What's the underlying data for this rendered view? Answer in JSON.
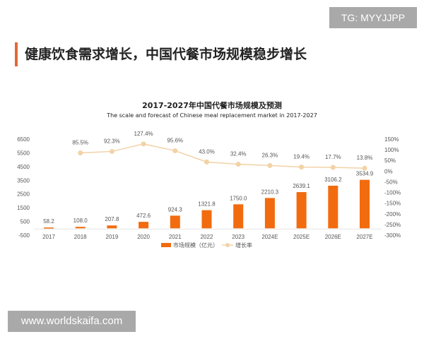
{
  "header": {
    "title": "健康饮食需求增长，中国代餐市场规模稳步增长"
  },
  "watermarks": {
    "tg": "TG: MYYJJPP",
    "site": "www.worldskaifa.com"
  },
  "chart_data": {
    "type": "bar+line",
    "title": "2017-2027年中国代餐市场规模及预测",
    "subtitle": "The scale and forecast of Chinese meal replacement market in 2017-2027",
    "categories": [
      "2017",
      "2018",
      "2019",
      "2020",
      "2021",
      "2022",
      "2023",
      "2024E",
      "2025E",
      "2026E",
      "2027E"
    ],
    "series": [
      {
        "name": "市场规模（亿元）",
        "type": "bar",
        "axis": "left",
        "color": "#f26b0f",
        "values": [
          58.2,
          108.0,
          207.8,
          472.6,
          924.3,
          1321.8,
          1750.0,
          2210.3,
          2639.1,
          3106.2,
          3534.9
        ],
        "labels": [
          "58.2",
          "108.0",
          "207.8",
          "472.6",
          "924.3",
          "1321.8",
          "1750.0",
          "2210.3",
          "2639.1",
          "3106.2",
          "3534.9"
        ]
      },
      {
        "name": "增长率",
        "type": "line",
        "axis": "right",
        "color": "#f2d2a6",
        "values": [
          null,
          85.5,
          92.3,
          127.4,
          95.6,
          43.0,
          32.4,
          26.3,
          19.4,
          17.7,
          13.8
        ],
        "labels": [
          "",
          "85.5%",
          "92.3%",
          "127.4%",
          "95.6%",
          "43.0%",
          "32.4%",
          "26.3%",
          "19.4%",
          "17.7%",
          "13.8%"
        ]
      }
    ],
    "y_left": {
      "ticks": [
        "6500",
        "5500",
        "4500",
        "3500",
        "2500",
        "1500",
        "500",
        "-500"
      ],
      "range": [
        -500,
        6500
      ]
    },
    "y_right": {
      "ticks": [
        "150%",
        "100%",
        "50%",
        "0%",
        "-50%",
        "-100%",
        "-150%",
        "-200%",
        "-250%",
        "-300%"
      ],
      "range": [
        -300,
        150
      ]
    },
    "legend": {
      "position": "bottom",
      "items": [
        "市场规模（亿元）",
        "增长率"
      ]
    },
    "grid": false
  }
}
